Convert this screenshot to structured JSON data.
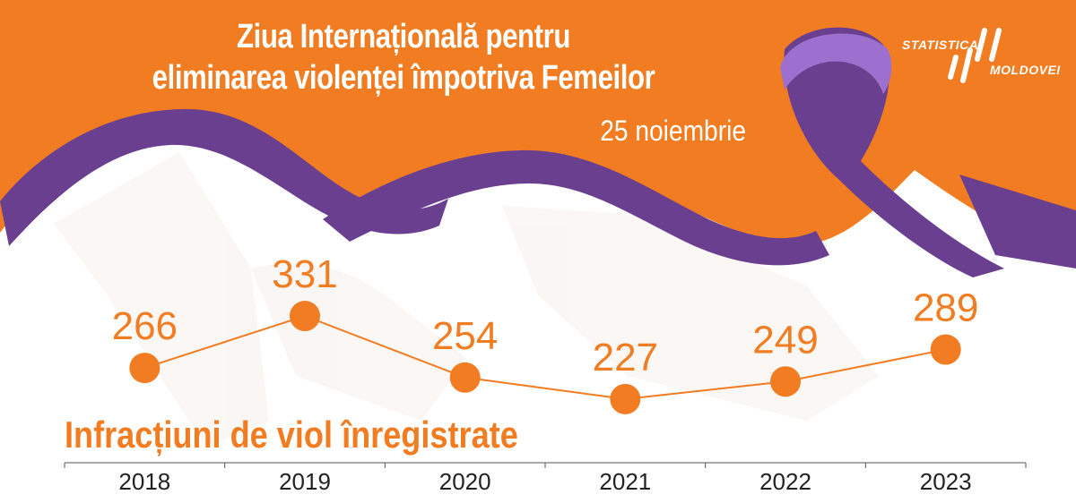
{
  "header": {
    "title_line1": "Ziua Internațională pentru",
    "title_line2": "eliminarea violenței împotriva Femeilor",
    "date": "25 noiembrie"
  },
  "logo": {
    "line1": "STATISTICA",
    "line2": "MOLDOVEI",
    "icon": "statistica-moldovei-logo"
  },
  "colors": {
    "orange": "#f27c21",
    "purple": "#6b3f8f",
    "light_purple": "#9d6fce",
    "white": "#ffffff",
    "axis": "#555555"
  },
  "chart_data": {
    "type": "line",
    "title": "Infracțiuni de viol înregistrate",
    "categories": [
      "2018",
      "2019",
      "2020",
      "2021",
      "2022",
      "2023"
    ],
    "values": [
      266,
      331,
      254,
      227,
      249,
      289
    ],
    "data_labels": [
      "266",
      "331",
      "254",
      "227",
      "249",
      "289"
    ],
    "grid": false,
    "legend": "none"
  }
}
